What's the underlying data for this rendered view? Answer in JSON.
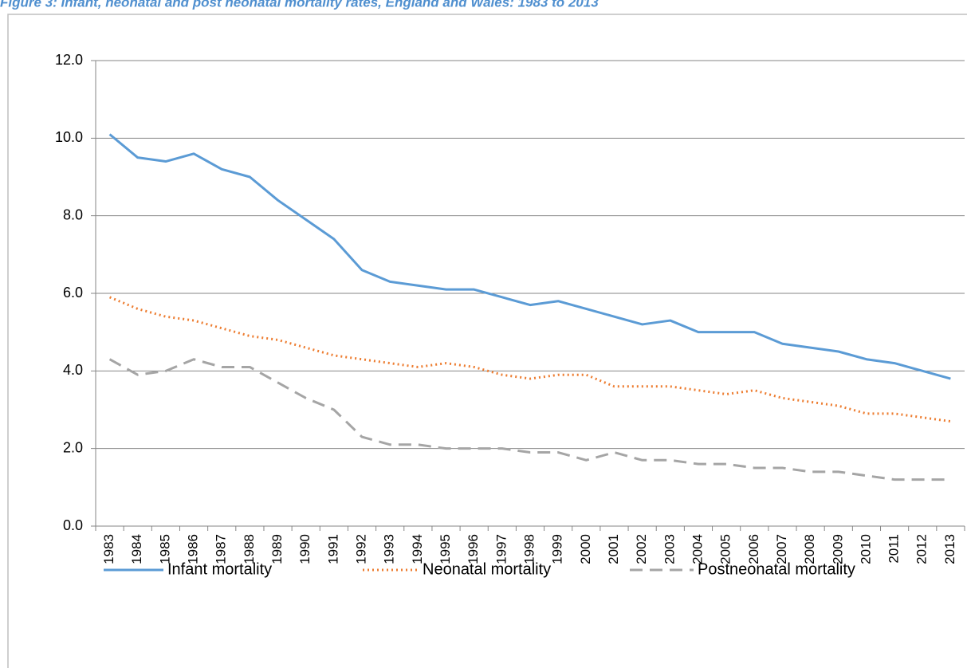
{
  "chart_data": {
    "type": "line",
    "title": "Figure 3: Infant, neonatal and post neonatal mortality rates, England and Wales: 1983 to 2013",
    "categories": [
      "1983",
      "1984",
      "1985",
      "1986",
      "1987",
      "1988",
      "1989",
      "1990",
      "1991",
      "1992",
      "1993",
      "1994",
      "1995",
      "1996",
      "1997",
      "1998",
      "1999",
      "2000",
      "2001",
      "2002",
      "2003",
      "2004",
      "2005",
      "2006",
      "2007",
      "2008",
      "2009",
      "2010",
      "2011",
      "2012",
      "2013"
    ],
    "series": [
      {
        "name": "Infant mortality",
        "color": "#5b9bd5",
        "dash": "solid",
        "values": [
          10.1,
          9.5,
          9.4,
          9.6,
          9.2,
          9.0,
          8.4,
          7.9,
          7.4,
          6.6,
          6.3,
          6.2,
          6.1,
          6.1,
          5.9,
          5.7,
          5.8,
          5.6,
          5.4,
          5.2,
          5.3,
          5.0,
          5.0,
          5.0,
          4.7,
          4.6,
          4.5,
          4.3,
          4.2,
          4.0,
          3.8
        ]
      },
      {
        "name": "Neonatal mortality",
        "color": "#ed7d31",
        "dash": "dotted",
        "values": [
          5.9,
          5.6,
          5.4,
          5.3,
          5.1,
          4.9,
          4.8,
          4.6,
          4.4,
          4.3,
          4.2,
          4.1,
          4.2,
          4.1,
          3.9,
          3.8,
          3.9,
          3.9,
          3.6,
          3.6,
          3.6,
          3.5,
          3.4,
          3.5,
          3.3,
          3.2,
          3.1,
          2.9,
          2.9,
          2.8,
          2.7
        ]
      },
      {
        "name": "Postneonatal mortality",
        "color": "#a5a5a5",
        "dash": "dashed",
        "values": [
          4.3,
          3.9,
          4.0,
          4.3,
          4.1,
          4.1,
          3.7,
          3.3,
          3.0,
          2.3,
          2.1,
          2.1,
          2.0,
          2.0,
          2.0,
          1.9,
          1.9,
          1.7,
          1.9,
          1.7,
          1.7,
          1.6,
          1.6,
          1.5,
          1.5,
          1.4,
          1.4,
          1.3,
          1.2,
          1.2,
          1.2
        ]
      }
    ],
    "ylim": [
      0,
      12
    ],
    "yticks": [
      {
        "value": 0,
        "label": "0.0"
      },
      {
        "value": 2,
        "label": "2.0"
      },
      {
        "value": 4,
        "label": "4.0"
      },
      {
        "value": 6,
        "label": "6.0"
      },
      {
        "value": 8,
        "label": "8.0"
      },
      {
        "value": 10,
        "label": "10.0"
      },
      {
        "value": 12,
        "label": "12.0"
      }
    ],
    "grid": true,
    "legend": "bottom"
  }
}
